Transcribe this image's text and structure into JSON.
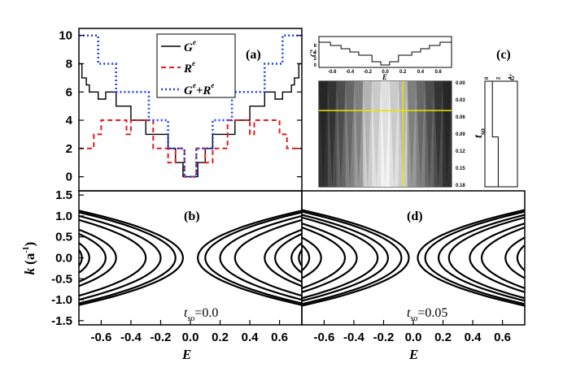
{
  "chart_data": [
    {
      "panel": "(a)",
      "type": "line",
      "xlim": [
        -0.75,
        0.75
      ],
      "ylim": [
        -1,
        10.5
      ],
      "yticks": [
        0,
        2,
        4,
        6,
        8,
        10
      ],
      "legend": [
        "G^e",
        "R^e",
        "G^e+R^e"
      ],
      "series": [
        {
          "name": "G^e",
          "color": "#000000",
          "dash": "solid",
          "x": [
            -0.75,
            -0.73,
            -0.73,
            -0.7,
            -0.7,
            -0.68,
            -0.68,
            -0.62,
            -0.62,
            -0.57,
            -0.57,
            -0.5,
            -0.5,
            -0.4,
            -0.4,
            -0.3,
            -0.3,
            -0.15,
            -0.15,
            -0.1,
            -0.1,
            -0.05,
            -0.05,
            0.05,
            0.05,
            0.1,
            0.1,
            0.15,
            0.15,
            0.3,
            0.3,
            0.4,
            0.4,
            0.5,
            0.5,
            0.57,
            0.57,
            0.62,
            0.62,
            0.68,
            0.68,
            0.7,
            0.7,
            0.73,
            0.73,
            0.75
          ],
          "y": [
            8,
            8,
            7,
            7,
            6.5,
            6.5,
            6,
            6,
            5.5,
            5.5,
            6,
            6,
            5,
            5,
            4,
            4,
            3,
            3,
            2,
            2,
            1,
            1,
            0,
            0,
            1,
            1,
            2,
            2,
            3,
            3,
            4,
            4,
            5,
            5,
            6,
            6,
            5.5,
            5.5,
            6,
            6,
            6.5,
            6.5,
            7,
            7,
            8,
            8
          ]
        },
        {
          "name": "R^e",
          "color": "#e41a1c",
          "dash": "dashed",
          "x": [
            -0.75,
            -0.65,
            -0.65,
            -0.6,
            -0.6,
            -0.43,
            -0.43,
            -0.4,
            -0.4,
            -0.25,
            -0.25,
            -0.15,
            -0.15,
            -0.1,
            -0.1,
            -0.04,
            -0.04,
            0.04,
            0.04,
            0.1,
            0.1,
            0.15,
            0.15,
            0.25,
            0.25,
            0.4,
            0.4,
            0.43,
            0.43,
            0.6,
            0.6,
            0.65,
            0.65,
            0.75
          ],
          "y": [
            2,
            2,
            3,
            3,
            4,
            4,
            3,
            3,
            4,
            4,
            2,
            2,
            1,
            1,
            2,
            2,
            0,
            0,
            2,
            2,
            1,
            1,
            2,
            2,
            4,
            4,
            3,
            3,
            4,
            4,
            3,
            3,
            2,
            2
          ]
        },
        {
          "name": "G^e+R^e",
          "color": "#1f3fff",
          "dash": "dotted",
          "x": [
            -0.75,
            -0.62,
            -0.62,
            -0.5,
            -0.5,
            -0.28,
            -0.28,
            -0.15,
            -0.15,
            -0.04,
            -0.04,
            0.04,
            0.04,
            0.15,
            0.15,
            0.28,
            0.28,
            0.5,
            0.5,
            0.62,
            0.62,
            0.75
          ],
          "y": [
            10,
            10,
            8,
            8,
            6,
            6,
            4,
            4,
            2,
            2,
            0,
            0,
            2,
            2,
            4,
            4,
            6,
            6,
            8,
            8,
            10,
            10
          ]
        }
      ]
    },
    {
      "panel": "(b)",
      "type": "line",
      "description_label": "t_so=0.0",
      "xlabel": "E",
      "ylabel": "k (a^-1)",
      "xlim": [
        -0.75,
        0.75
      ],
      "ylim": [
        -1.6,
        1.6
      ],
      "xticks": [
        -0.6,
        -0.4,
        -0.2,
        0.0,
        0.2,
        0.4,
        0.6
      ],
      "yticks": [
        -1.5,
        -1.0,
        -0.5,
        0.0,
        0.5,
        1.0,
        1.5
      ],
      "bands": [
        {
          "vertex_E": 0.05,
          "curvature": 0.55
        },
        {
          "vertex_E": 0.1,
          "curvature": 0.55
        },
        {
          "vertex_E": 0.2,
          "curvature": 0.55
        },
        {
          "vertex_E": 0.3,
          "curvature": 0.55
        },
        {
          "vertex_E": 0.5,
          "curvature": 0.55
        },
        {
          "vertex_E": 0.57,
          "curvature": 0.55
        },
        {
          "vertex_E": 0.68,
          "curvature": 0.55
        },
        {
          "vertex_E": 0.73,
          "curvature": 0.55
        }
      ]
    },
    {
      "panel": "(c)",
      "type": "heatmap",
      "xlabel": "E",
      "ylabel": "t_so",
      "xticks": [
        -0.6,
        -0.4,
        -0.2,
        0.0,
        0.2,
        0.4,
        0.6
      ],
      "yticks": [
        "0.00",
        "0.03",
        "0.06",
        "0.09",
        "0.12",
        "0.15",
        "0.18"
      ],
      "top_inset": {
        "ylabel": "G^e",
        "yticks": [
          0,
          2,
          4,
          6
        ],
        "x": [
          -0.75,
          -0.62,
          -0.62,
          -0.5,
          -0.5,
          -0.4,
          -0.4,
          -0.3,
          -0.3,
          -0.15,
          -0.15,
          -0.05,
          -0.05,
          0.05,
          0.05,
          0.15,
          0.15,
          0.3,
          0.3,
          0.4,
          0.4,
          0.5,
          0.5,
          0.62,
          0.62,
          0.75
        ],
        "y": [
          7,
          7,
          6,
          6,
          5,
          5,
          4,
          4,
          3,
          3,
          1,
          1,
          0,
          0,
          1,
          1,
          3,
          3,
          4,
          4,
          5,
          5,
          6,
          6,
          7,
          7
        ]
      },
      "side_inset": {
        "xlabel": "G^e",
        "xticks": [
          0,
          2,
          4
        ],
        "t": [
          0.0,
          0.095,
          0.095,
          0.18
        ],
        "g": [
          1,
          1,
          2,
          2
        ]
      },
      "cursor": {
        "E": 0.2,
        "t_so": 0.05,
        "color": "#e6e600"
      }
    },
    {
      "panel": "(d)",
      "type": "line",
      "description_label": "t_so=0.05",
      "xlabel": "E",
      "xlim": [
        -0.75,
        0.75
      ],
      "ylim": [
        -1.6,
        1.6
      ],
      "xticks": [
        -0.6,
        -0.4,
        -0.2,
        0.0,
        0.2,
        0.4,
        0.6
      ],
      "bands": [
        {
          "vertex_E": 0.03,
          "curvature": 0.55
        },
        {
          "vertex_E": 0.08,
          "curvature": 0.55
        },
        {
          "vertex_E": 0.17,
          "curvature": 0.55
        },
        {
          "vertex_E": 0.24,
          "curvature": 0.55
        },
        {
          "vertex_E": 0.38,
          "curvature": 0.55
        },
        {
          "vertex_E": 0.46,
          "curvature": 0.55
        },
        {
          "vertex_E": 0.62,
          "curvature": 0.55
        },
        {
          "vertex_E": 0.7,
          "curvature": 0.55
        }
      ]
    }
  ],
  "text": {
    "panel_a": "(a)",
    "panel_b": "(b)",
    "panel_c": "(c)",
    "panel_d": "(d)",
    "legend_g": "G",
    "legend_r": "R",
    "legend_sum_g": "G",
    "legend_sum_plus": "+R",
    "sup_e": "e",
    "tso_t": "t",
    "tso_sub": "so",
    "tso_b_val": "=0.0",
    "tso_d_val": "=0.05",
    "xlabel": "E",
    "ylabel_k": "k",
    "ylabel_unit": "(a",
    "ylabel_unit_sup": "-1",
    "ylabel_unit_close": ")",
    "c_ylabel_t": "t",
    "c_ylabel_sub": "so",
    "c_top_ylabel": "G",
    "c_side_xlabel": "G"
  },
  "colors": {
    "black": "#000000",
    "red": "#e41a1c",
    "blue": "#1f3fff",
    "yellow": "#e6e600"
  }
}
